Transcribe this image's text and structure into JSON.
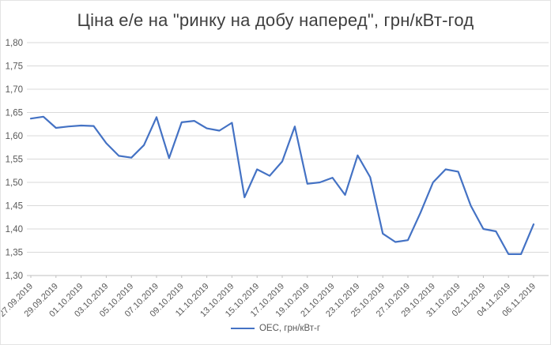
{
  "title": "Ціна е/е на \"ринку на добу наперед\", грн/кВт-год",
  "legend": {
    "label": "ОЕС, грн/кВт-г"
  },
  "colors": {
    "line": "#4472C4",
    "grid": "#D9D9D9",
    "axis_line": "#BFBFBF",
    "axis_text": "#595959",
    "title_text": "#3f3f3f"
  },
  "chart_data": {
    "type": "line",
    "title": "Ціна е/е на \"ринку на добу наперед\", грн/кВт-год",
    "x": [
      "27.09.2019",
      "28.09.2019",
      "29.09.2019",
      "30.09.2019",
      "01.10.2019",
      "02.10.2019",
      "03.10.2019",
      "04.10.2019",
      "05.10.2019",
      "06.10.2019",
      "07.10.2019",
      "08.10.2019",
      "09.10.2019",
      "10.10.2019",
      "11.10.2019",
      "12.10.2019",
      "13.10.2019",
      "14.10.2019",
      "15.10.2019",
      "16.10.2019",
      "17.10.2019",
      "18.10.2019",
      "19.10.2019",
      "20.10.2019",
      "21.10.2019",
      "22.10.2019",
      "23.10.2019",
      "24.10.2019",
      "25.10.2019",
      "26.10.2019",
      "27.10.2019",
      "28.10.2019",
      "29.10.2019",
      "30.10.2019",
      "31.10.2019",
      "01.11.2019",
      "02.11.2019",
      "03.11.2019",
      "04.11.2019",
      "05.11.2019",
      "06.11.2019"
    ],
    "series": [
      {
        "name": "ОЕС, грн/кВт-г",
        "values": [
          1.637,
          1.641,
          1.617,
          1.62,
          1.622,
          1.621,
          1.584,
          1.557,
          1.553,
          1.58,
          1.64,
          1.552,
          1.629,
          1.632,
          1.616,
          1.611,
          1.628,
          1.468,
          1.528,
          1.514,
          1.545,
          1.62,
          1.497,
          1.5,
          1.51,
          1.473,
          1.558,
          1.511,
          1.39,
          1.372,
          1.376,
          1.435,
          1.5,
          1.528,
          1.523,
          1.45,
          1.4,
          1.395,
          1.346,
          1.346,
          1.41
        ]
      }
    ],
    "ylim": [
      1.3,
      1.8
    ],
    "ytick_step": 0.05,
    "ytick_labels": [
      "1,80",
      "1,75",
      "1,70",
      "1,65",
      "1,60",
      "1,55",
      "1,50",
      "1,45",
      "1,40",
      "1,35",
      "1,30"
    ],
    "xtick_every": 2,
    "xtick_labels": [
      "27.09.2019",
      "29.09.2019",
      "01.10.2019",
      "03.10.2019",
      "05.10.2019",
      "07.10.2019",
      "09.10.2019",
      "11.10.2019",
      "13.10.2019",
      "15.10.2019",
      "17.10.2019",
      "19.10.2019",
      "21.10.2019",
      "23.10.2019",
      "25.10.2019",
      "27.10.2019",
      "29.10.2019",
      "31.10.2019",
      "02.11.2019",
      "04.11.2019",
      "06.11.2019"
    ],
    "grid": "horizontal",
    "legend_position": "bottom",
    "decimal_separator": ","
  }
}
